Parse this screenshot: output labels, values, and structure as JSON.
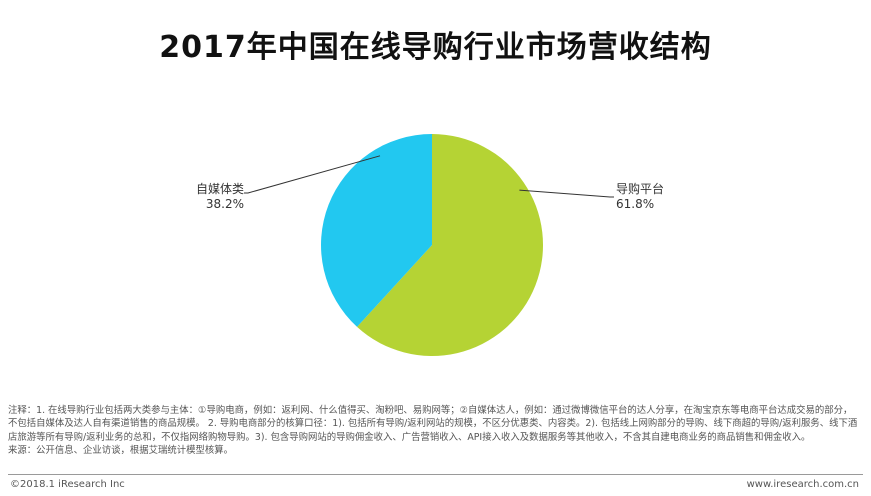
{
  "title": "2017年中国在线导购行业市场营收结构",
  "colors": {
    "slice_1": "#b5d334",
    "slice_2": "#22c8f0",
    "leader": "#333333"
  },
  "chart_data": {
    "type": "pie",
    "title": "2017年中国在线导购行业市场营收结构",
    "slices": [
      {
        "label": "导购平台",
        "value": 61.8,
        "value_text": "61.8%",
        "color": "#b5d334"
      },
      {
        "label": "自媒体类",
        "value": 38.2,
        "value_text": "38.2%",
        "color": "#22c8f0"
      }
    ]
  },
  "notes": {
    "note": "注释：1. 在线导购行业包括两大类参与主体：①导购电商，例如：返利网、什么值得买、淘粉吧、易购网等；②自媒体达人，例如：通过微博微信平台的达人分享，在淘宝京东等电商平台达成交易的部分，不包括自媒体及达人自有渠道销售的商品规模。 2. 导购电商部分的核算口径：1). 包括所有导购/返利网站的规模，不区分优惠类、内容类。2). 包括线上网购部分的导购、线下商超的导购/返利服务、线下酒店旅游等所有导购/返利业务的总和，不仅指网络购物导购。3). 包含导购网站的导购佣金收入、广告营销收入、API接入收入及数据服务等其他收入，不含其自建电商业务的商品销售和佣金收入。",
    "source": "来源：公开信息、企业访谈，根据艾瑞统计模型核算。"
  },
  "footer": {
    "copyright": "©2018.1 iResearch Inc",
    "website": "www.iresearch.com.cn"
  }
}
